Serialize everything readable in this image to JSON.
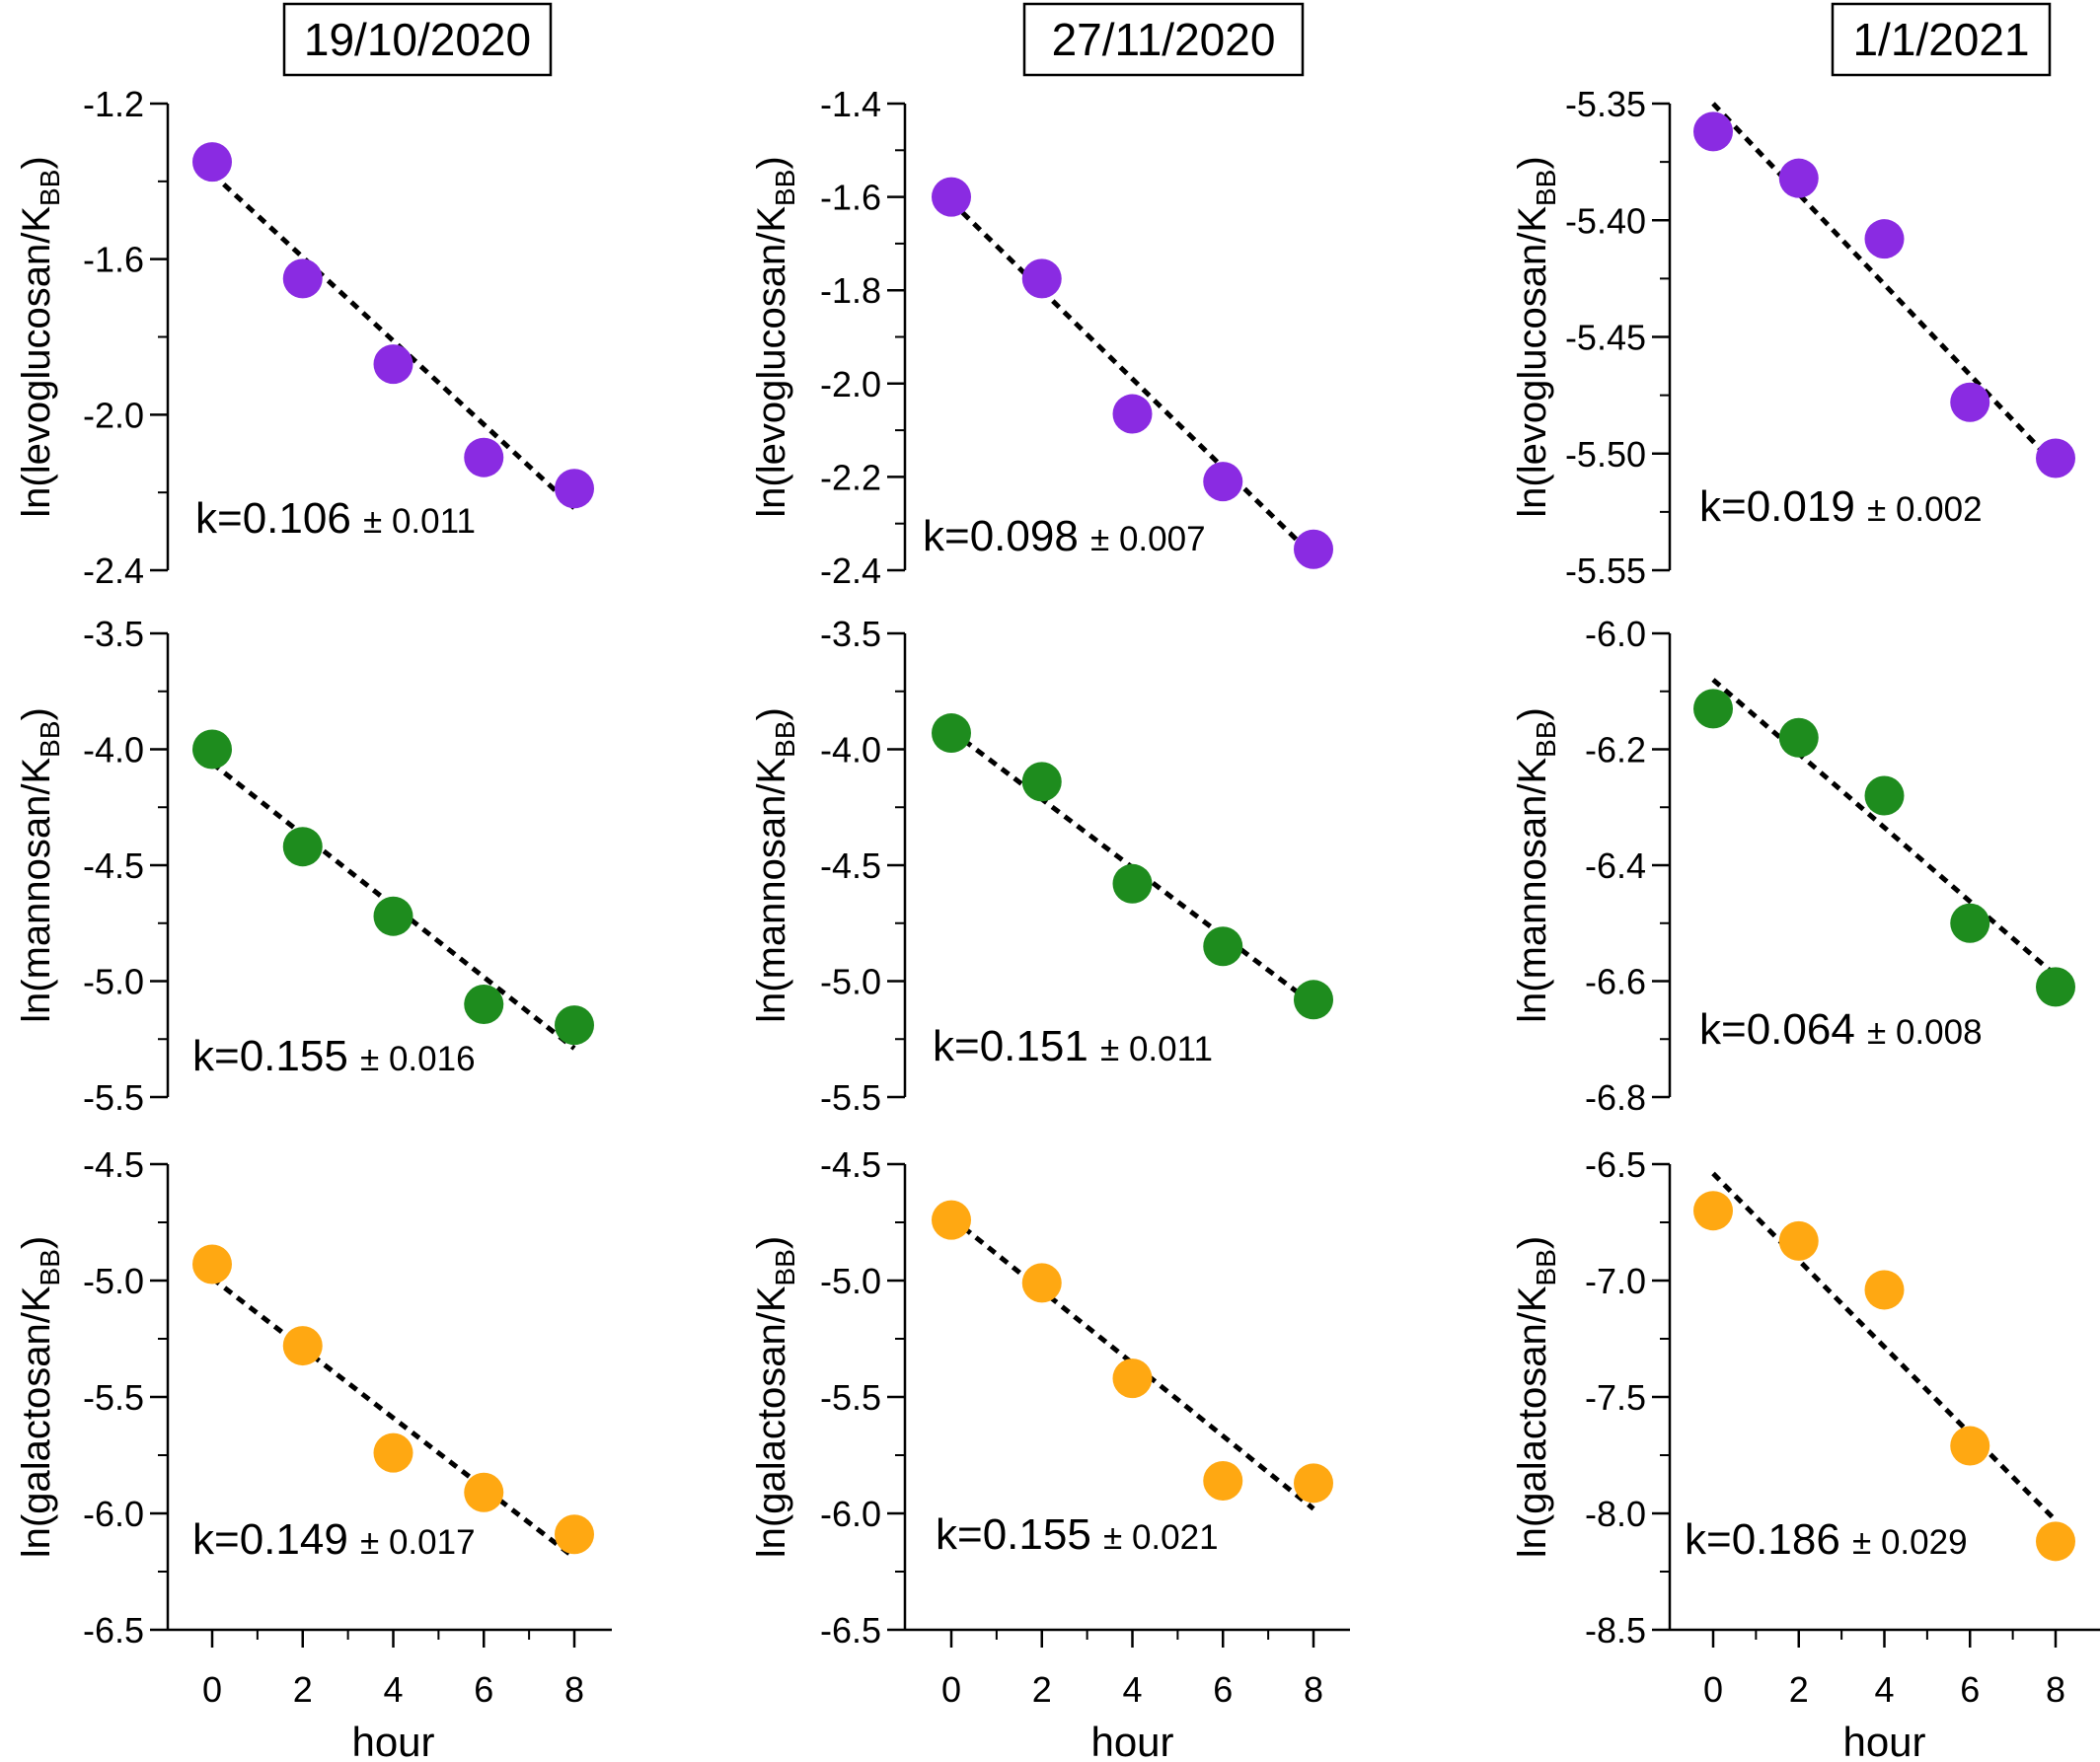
{
  "chart_data": {
    "type": "scatter",
    "grid": false,
    "columns": [
      {
        "date": "19/10/2020"
      },
      {
        "date": "27/11/2020"
      },
      {
        "date": "1/1/2021"
      }
    ],
    "xlabel": "hour",
    "x": [
      0,
      2,
      4,
      6,
      8
    ],
    "xticks": [
      0,
      2,
      4,
      6,
      8
    ],
    "xlim": [
      -0.6,
      8.8
    ],
    "panels": [
      {
        "row": 0,
        "col": 0,
        "compound": "levoglucosan",
        "color": "#8a2be2",
        "ylabel_prefix": "ln(levoglucosan/K",
        "ylabel_sub": "BB",
        "ylabel_suffix": ")",
        "ylim": [
          -2.4,
          -1.2
        ],
        "yticks": [
          -1.2,
          -1.6,
          -2.0,
          -2.4
        ],
        "yticklabels": [
          "-1.2",
          "-1.6",
          "-2.0",
          "-2.4"
        ],
        "y": [
          -1.35,
          -1.65,
          -1.87,
          -2.11,
          -2.19
        ],
        "fit": [
          [
            0,
            -1.38
          ],
          [
            8,
            -2.24
          ]
        ],
        "k": "k=0.106",
        "pm": "± 0.011"
      },
      {
        "row": 0,
        "col": 1,
        "compound": "levoglucosan",
        "color": "#8a2be2",
        "ylabel_prefix": "ln(levoglucosan/K",
        "ylabel_sub": "BB",
        "ylabel_suffix": ")",
        "ylim": [
          -2.4,
          -1.4
        ],
        "yticks": [
          -1.4,
          -1.6,
          -1.8,
          -2.0,
          -2.2,
          -2.4
        ],
        "yticklabels": [
          "-1.4",
          "-1.6",
          "-1.8",
          "-2.0",
          "-2.2",
          "-2.4"
        ],
        "y": [
          -1.6,
          -1.775,
          -2.065,
          -2.21,
          -2.355
        ],
        "fit": [
          [
            0,
            -1.61
          ],
          [
            8,
            -2.37
          ]
        ],
        "k": "k=0.098",
        "pm": "± 0.007"
      },
      {
        "row": 0,
        "col": 2,
        "compound": "levoglucosan",
        "color": "#8a2be2",
        "ylabel_prefix": "ln(levoglucosan/K",
        "ylabel_sub": "BB",
        "ylabel_suffix": ")",
        "ylim": [
          -5.55,
          -5.35
        ],
        "yticks": [
          -5.35,
          -5.4,
          -5.45,
          -5.5,
          -5.55
        ],
        "yticklabels": [
          "-5.35",
          "-5.40",
          "-5.45",
          "-5.50",
          "-5.55"
        ],
        "y": [
          -5.362,
          -5.382,
          -5.408,
          -5.478,
          -5.502
        ],
        "fit": [
          [
            0,
            -5.35
          ],
          [
            8,
            -5.505
          ]
        ],
        "k": "k=0.019",
        "pm": "± 0.002"
      },
      {
        "row": 1,
        "col": 0,
        "compound": "mannosan",
        "color": "#1e8c1e",
        "ylabel_prefix": "ln(mannosan/K",
        "ylabel_sub": "BB",
        "ylabel_suffix": ")",
        "ylim": [
          -5.5,
          -3.5
        ],
        "yticks": [
          -3.5,
          -4.0,
          -4.5,
          -5.0,
          -5.5
        ],
        "yticklabels": [
          "-3.5",
          "-4.0",
          "-4.5",
          "-5.0",
          "-5.5"
        ],
        "y": [
          -4.0,
          -4.42,
          -4.72,
          -5.1,
          -5.19
        ],
        "fit": [
          [
            0,
            -4.06
          ],
          [
            8,
            -5.29
          ]
        ],
        "k": "k=0.155",
        "pm": "± 0.016"
      },
      {
        "row": 1,
        "col": 1,
        "compound": "mannosan",
        "color": "#1e8c1e",
        "ylabel_prefix": "ln(mannosan/K",
        "ylabel_sub": "BB",
        "ylabel_suffix": ")",
        "ylim": [
          -5.5,
          -3.5
        ],
        "yticks": [
          -3.5,
          -4.0,
          -4.5,
          -5.0,
          -5.5
        ],
        "yticklabels": [
          "-3.5",
          "-4.0",
          "-4.5",
          "-5.0",
          "-5.5"
        ],
        "y": [
          -3.93,
          -4.14,
          -4.58,
          -4.85,
          -5.08
        ],
        "fit": [
          [
            0,
            -3.92
          ],
          [
            8,
            -5.1
          ]
        ],
        "k": "k=0.151",
        "pm": "± 0.011"
      },
      {
        "row": 1,
        "col": 2,
        "compound": "mannosan",
        "color": "#1e8c1e",
        "ylabel_prefix": "ln(mannosan/K",
        "ylabel_sub": "BB",
        "ylabel_suffix": ")",
        "ylim": [
          -6.8,
          -6.0
        ],
        "yticks": [
          -6.0,
          -6.2,
          -6.4,
          -6.6,
          -6.8
        ],
        "yticklabels": [
          "-6.0",
          "-6.2",
          "-6.4",
          "-6.6",
          "-6.8"
        ],
        "y": [
          -6.13,
          -6.18,
          -6.28,
          -6.5,
          -6.61
        ],
        "fit": [
          [
            0,
            -6.08
          ],
          [
            8,
            -6.59
          ]
        ],
        "k": "k=0.064",
        "pm": "± 0.008"
      },
      {
        "row": 2,
        "col": 0,
        "compound": "galactosan",
        "color": "#ffa812",
        "ylabel_prefix": "ln(galactosan/K",
        "ylabel_sub": "BB",
        "ylabel_suffix": ")",
        "ylim": [
          -6.5,
          -4.5
        ],
        "yticks": [
          -4.5,
          -5.0,
          -5.5,
          -6.0,
          -6.5
        ],
        "yticklabels": [
          "-4.5",
          "-5.0",
          "-5.5",
          "-6.0",
          "-6.5"
        ],
        "y": [
          -4.93,
          -5.28,
          -5.74,
          -5.91,
          -6.09
        ],
        "fit": [
          [
            0,
            -4.99
          ],
          [
            8,
            -6.19
          ]
        ],
        "k": "k=0.149",
        "pm": "± 0.017"
      },
      {
        "row": 2,
        "col": 1,
        "compound": "galactosan",
        "color": "#ffa812",
        "ylabel_prefix": "ln(galactosan/K",
        "ylabel_sub": "BB",
        "ylabel_suffix": ")",
        "ylim": [
          -6.5,
          -4.5
        ],
        "yticks": [
          -4.5,
          -5.0,
          -5.5,
          -6.0,
          -6.5
        ],
        "yticklabels": [
          "-4.5",
          "-5.0",
          "-5.5",
          "-6.0",
          "-6.5"
        ],
        "y": [
          -4.74,
          -5.01,
          -5.42,
          -5.86,
          -5.87
        ],
        "fit": [
          [
            0,
            -4.73
          ],
          [
            8,
            -5.98
          ]
        ],
        "k": "k=0.155",
        "pm": "± 0.021"
      },
      {
        "row": 2,
        "col": 2,
        "compound": "galactosan",
        "color": "#ffa812",
        "ylabel_prefix": "ln(galactosan/K",
        "ylabel_sub": "BB",
        "ylabel_suffix": ")",
        "ylim": [
          -8.5,
          -6.5
        ],
        "yticks": [
          -6.5,
          -7.0,
          -7.5,
          -8.0,
          -8.5
        ],
        "yticklabels": [
          "-6.5",
          "-7.0",
          "-7.5",
          "-8.0",
          "-8.5"
        ],
        "y": [
          -6.7,
          -6.83,
          -7.04,
          -7.71,
          -8.12
        ],
        "fit": [
          [
            0,
            -6.54
          ],
          [
            8,
            -8.03
          ]
        ],
        "k": "k=0.186",
        "pm": "± 0.029"
      }
    ]
  }
}
